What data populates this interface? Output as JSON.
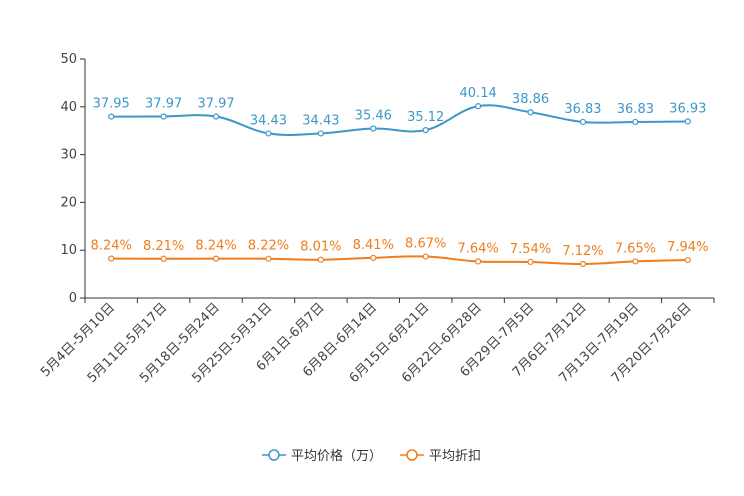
{
  "chart_data": {
    "type": "line",
    "title": "",
    "xlabel": "",
    "ylabel": "",
    "ylim": [
      0,
      50
    ],
    "yticks": [
      0,
      10,
      20,
      30,
      40,
      50
    ],
    "categories": [
      "5月4日-5月10日",
      "5月11日-5月17日",
      "5月18日-5月24日",
      "5月25日-5月31日",
      "6月1日-6月7日",
      "6月8日-6月14日",
      "6月15日-6月21日",
      "6月22日-6月28日",
      "6月29日-7月5日",
      "7月6日-7月12日",
      "7月13日-7月19日",
      "7月20日-7月26日"
    ],
    "series": [
      {
        "name": "平均价格（万）",
        "color": "#3d98c9",
        "values": [
          37.95,
          37.97,
          37.97,
          34.43,
          34.43,
          35.46,
          35.12,
          40.14,
          38.86,
          36.83,
          36.83,
          36.93
        ],
        "labels": [
          "37.95",
          "37.97",
          "37.97",
          "34.43",
          "34.43",
          "35.46",
          "35.12",
          "40.14",
          "38.86",
          "36.83",
          "36.83",
          "36.93"
        ]
      },
      {
        "name": "平均折扣",
        "color": "#f07d1c",
        "values": [
          8.24,
          8.21,
          8.24,
          8.22,
          8.01,
          8.41,
          8.67,
          7.64,
          7.54,
          7.12,
          7.65,
          7.94
        ],
        "labels": [
          "8.24%",
          "8.21%",
          "8.24%",
          "8.22%",
          "8.01%",
          "8.41%",
          "8.67%",
          "7.64%",
          "7.54%",
          "7.12%",
          "7.65%",
          "7.94%"
        ]
      }
    ],
    "legend_position": "bottom-center"
  }
}
